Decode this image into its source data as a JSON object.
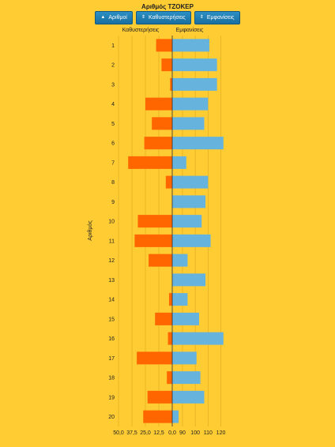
{
  "header": {
    "title": "Αριθμός ΤΖΟΚΕΡ",
    "buttons": [
      {
        "label": "Αριθμοί",
        "arrow": "▲"
      },
      {
        "label": "Καθυστερήσεις",
        "arrow": "⇕"
      },
      {
        "label": "Εμφανίσεις",
        "arrow": "⇕"
      }
    ]
  },
  "colors": {
    "background": "#FFCC33",
    "delays": "#FF6600",
    "appearances": "#66B3DD",
    "button": "#1F7DB3"
  },
  "chart_data": {
    "type": "bar",
    "orientation": "horizontal-diverging",
    "ylabel": "Αριθμός",
    "categories": [
      "1",
      "2",
      "3",
      "4",
      "5",
      "6",
      "7",
      "8",
      "9",
      "10",
      "11",
      "12",
      "13",
      "14",
      "15",
      "16",
      "17",
      "18",
      "19",
      "20"
    ],
    "left_axis": {
      "title": "Καθυστερήσεις",
      "ticks": [
        "50,0",
        "37,5",
        "25,0",
        "12,5",
        "0,0"
      ],
      "range": [
        0,
        50
      ]
    },
    "right_axis": {
      "title": "Εμφανίσεις",
      "ticks": [
        "90",
        "100",
        "110",
        "120"
      ],
      "range": [
        82,
        124
      ]
    },
    "series": [
      {
        "name": "Καθυστερήσεις",
        "side": "left",
        "values": [
          15,
          10,
          2,
          25,
          19,
          26,
          41,
          6,
          0,
          32,
          35,
          22,
          0,
          3,
          16,
          4,
          33,
          5,
          23,
          27
        ]
      },
      {
        "name": "Εμφανίσεις",
        "side": "right",
        "values": [
          111,
          117,
          117,
          110,
          107,
          122,
          93,
          110,
          108,
          105,
          112,
          94,
          108,
          94,
          103,
          122,
          101,
          104,
          107,
          87
        ]
      }
    ]
  }
}
